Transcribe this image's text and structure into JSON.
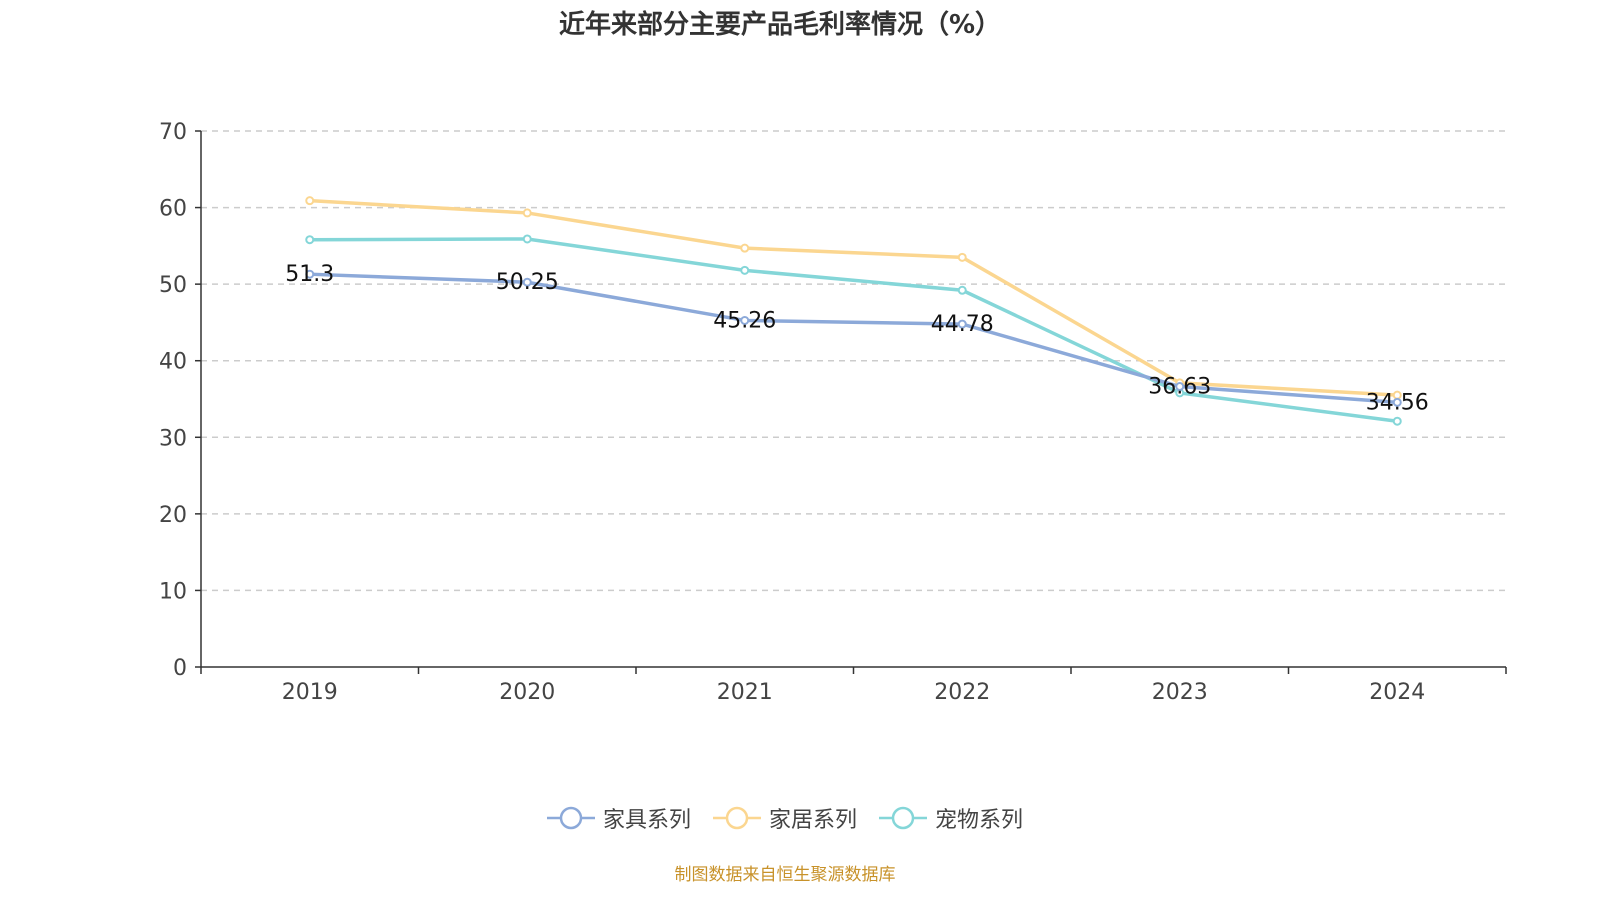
{
  "chart_data": {
    "type": "line",
    "title": "近年来部分主要产品毛利率情况（%）",
    "categories": [
      "2019",
      "2020",
      "2021",
      "2022",
      "2023",
      "2024"
    ],
    "ylim": [
      0,
      70
    ],
    "yticks": [
      0,
      10,
      20,
      30,
      40,
      50,
      60,
      70
    ],
    "grid": true,
    "legend_position": "bottom",
    "series": [
      {
        "name": "家具系列",
        "color": "#8ca9d9",
        "values": [
          51.3,
          50.25,
          45.26,
          44.78,
          36.63,
          34.56
        ],
        "labels": [
          "51.3",
          "50.25",
          "45.26",
          "44.78",
          "36.63",
          "34.56"
        ]
      },
      {
        "name": "家居系列",
        "color": "#fbd690",
        "values": [
          60.9,
          59.3,
          54.7,
          53.5,
          37.1,
          35.5
        ]
      },
      {
        "name": "宠物系列",
        "color": "#84d6d8",
        "values": [
          55.8,
          55.9,
          51.8,
          49.2,
          35.8,
          32.1
        ]
      }
    ]
  },
  "source": "制图数据来自恒生聚源数据库"
}
